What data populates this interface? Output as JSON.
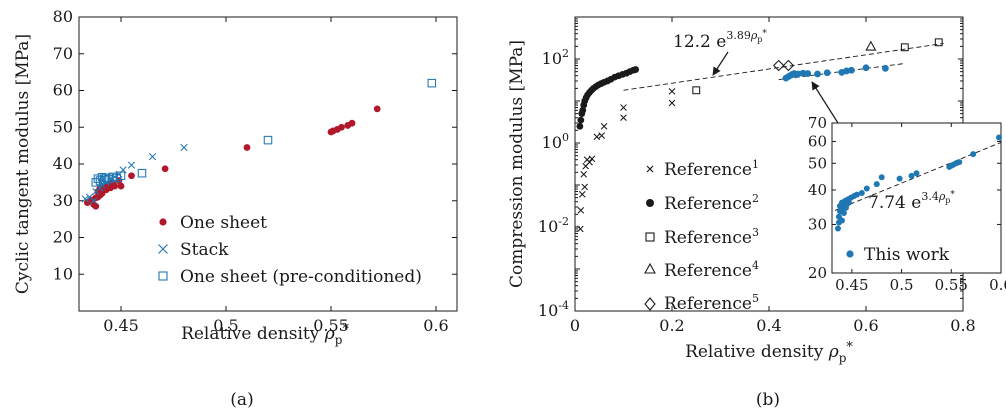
{
  "colors": {
    "red": "#b2182b",
    "blue": "#1f77b4",
    "axis": "#1a1a1a"
  },
  "panel_labels": [
    "(a)",
    "(b)"
  ],
  "chart_data": [
    {
      "type": "scatter",
      "xlabel": "Relative density ρp*",
      "ylabel": "Cyclic tangent modulus [MPa]",
      "xlim": [
        0.43,
        0.61
      ],
      "ylim": [
        0,
        80
      ],
      "xticks": [
        0.45,
        0.5,
        0.55,
        0.6
      ],
      "yticks": [
        10,
        20,
        30,
        40,
        50,
        60,
        70,
        80
      ],
      "legend_position": "bottom-right",
      "series": [
        {
          "name": "One sheet",
          "marker": "dot",
          "color": "#b2182b",
          "points": [
            [
              0.434,
              29.5
            ],
            [
              0.436,
              30.2
            ],
            [
              0.437,
              29
            ],
            [
              0.438,
              28.5
            ],
            [
              0.438,
              30.8
            ],
            [
              0.439,
              31
            ],
            [
              0.439,
              32.5
            ],
            [
              0.44,
              31.5
            ],
            [
              0.44,
              33.4
            ],
            [
              0.441,
              32
            ],
            [
              0.442,
              34
            ],
            [
              0.443,
              33
            ],
            [
              0.444,
              34.5
            ],
            [
              0.445,
              33.5
            ],
            [
              0.446,
              35
            ],
            [
              0.447,
              34
            ],
            [
              0.449,
              35.5
            ],
            [
              0.45,
              34
            ],
            [
              0.455,
              36.8
            ],
            [
              0.471,
              38.7
            ],
            [
              0.51,
              44.5
            ],
            [
              0.55,
              48.7
            ],
            [
              0.551,
              49
            ],
            [
              0.553,
              49.4
            ],
            [
              0.555,
              50
            ],
            [
              0.558,
              50.5
            ],
            [
              0.56,
              51.1
            ],
            [
              0.572,
              55
            ]
          ]
        },
        {
          "name": "Stack",
          "marker": "cross",
          "color": "#1f77b4",
          "points": [
            [
              0.433,
              30.5
            ],
            [
              0.435,
              31
            ],
            [
              0.437,
              30
            ],
            [
              0.438,
              32.5
            ],
            [
              0.44,
              33.5
            ],
            [
              0.441,
              34.2
            ],
            [
              0.443,
              35
            ],
            [
              0.445,
              36
            ],
            [
              0.447,
              36.5
            ],
            [
              0.449,
              37.2
            ],
            [
              0.451,
              38.4
            ],
            [
              0.455,
              39.7
            ],
            [
              0.465,
              42
            ],
            [
              0.48,
              44.5
            ]
          ]
        },
        {
          "name": "One sheet (pre-conditioned)",
          "marker": "square",
          "color": "#1f77b4",
          "points": [
            [
              0.438,
              35
            ],
            [
              0.439,
              36
            ],
            [
              0.44,
              35.5
            ],
            [
              0.441,
              36.4
            ],
            [
              0.442,
              35.7
            ],
            [
              0.443,
              36.2
            ],
            [
              0.444,
              35.9
            ],
            [
              0.446,
              36.5
            ],
            [
              0.448,
              36.2
            ],
            [
              0.45,
              36.8
            ],
            [
              0.46,
              37.5
            ],
            [
              0.52,
              46.5
            ],
            [
              0.598,
              62
            ]
          ]
        }
      ]
    },
    {
      "type": "scatter",
      "y_scale": "log",
      "xlabel": "Relative density ρp*",
      "ylabel": "Compression modulus [MPa]",
      "xlim": [
        0,
        0.8
      ],
      "ylim": [
        0.0001,
        1000
      ],
      "xticks": [
        0,
        0.2,
        0.4,
        0.6,
        0.8
      ],
      "ytick_labels": [
        "10^-4",
        "10^-2",
        "10^0",
        "10^2"
      ],
      "legend_position": "center",
      "annotations": [
        {
          "text": "12.2 e^3.89ρp*",
          "fit": {
            "type": "exponential",
            "a": 12.2,
            "b": 3.89,
            "x_range": [
              0.1,
              0.76
            ]
          }
        }
      ],
      "series": [
        {
          "name": "Reference1",
          "marker": "x",
          "color": "#1a1a1a",
          "points": [
            [
              0.011,
              0.009
            ],
            [
              0.012,
              0.025
            ],
            [
              0.015,
              0.06
            ],
            [
              0.018,
              0.18
            ],
            [
              0.02,
              0.09
            ],
            [
              0.022,
              0.28
            ],
            [
              0.025,
              0.4
            ],
            [
              0.03,
              0.35
            ],
            [
              0.035,
              0.42
            ],
            [
              0.045,
              1.4
            ],
            [
              0.055,
              1.5
            ],
            [
              0.06,
              2.5
            ],
            [
              0.1,
              4
            ],
            [
              0.1,
              7
            ],
            [
              0.2,
              9
            ],
            [
              0.2,
              17
            ]
          ]
        },
        {
          "name": "Reference2",
          "marker": "dot",
          "color": "#1a1a1a",
          "points": [
            [
              0.01,
              2.5
            ],
            [
              0.012,
              3.5
            ],
            [
              0.014,
              5
            ],
            [
              0.016,
              6
            ],
            [
              0.018,
              8
            ],
            [
              0.02,
              10
            ],
            [
              0.023,
              12
            ],
            [
              0.026,
              14
            ],
            [
              0.03,
              16
            ],
            [
              0.034,
              18
            ],
            [
              0.038,
              20
            ],
            [
              0.043,
              22
            ],
            [
              0.048,
              24
            ],
            [
              0.054,
              26
            ],
            [
              0.06,
              28
            ],
            [
              0.067,
              30
            ],
            [
              0.074,
              33
            ],
            [
              0.082,
              37
            ],
            [
              0.09,
              40
            ],
            [
              0.098,
              43
            ],
            [
              0.106,
              46
            ],
            [
              0.113,
              50
            ],
            [
              0.12,
              54
            ],
            [
              0.125,
              56
            ]
          ]
        },
        {
          "name": "Reference3",
          "marker": "square",
          "color": "#1a1a1a",
          "points": [
            [
              0.25,
              18
            ],
            [
              0.68,
              190
            ],
            [
              0.75,
              250
            ]
          ]
        },
        {
          "name": "Reference4",
          "marker": "triangle",
          "color": "#1a1a1a",
          "points": [
            [
              0.61,
              200
            ]
          ]
        },
        {
          "name": "Reference5",
          "marker": "diamond",
          "color": "#1a1a1a",
          "points": [
            [
              0.42,
              70
            ],
            [
              0.44,
              70
            ]
          ]
        },
        {
          "name": "This work",
          "marker": "dot",
          "color": "#1f77b4",
          "points": [
            [
              0.435,
              35
            ],
            [
              0.44,
              38
            ],
            [
              0.445,
              41
            ],
            [
              0.448,
              43
            ],
            [
              0.452,
              45
            ],
            [
              0.455,
              42
            ],
            [
              0.46,
              44
            ],
            [
              0.47,
              46
            ],
            [
              0.48,
              45
            ],
            [
              0.5,
              44
            ],
            [
              0.52,
              47
            ],
            [
              0.55,
              48
            ],
            [
              0.56,
              52
            ],
            [
              0.57,
              54
            ],
            [
              0.6,
              62
            ],
            [
              0.64,
              60
            ]
          ]
        }
      ]
    },
    {
      "type": "scatter",
      "inset": true,
      "y_scale": "log",
      "xlim": [
        0.43,
        0.6
      ],
      "ylim": [
        20,
        70
      ],
      "xticks": [
        0.45,
        0.5,
        0.55,
        0.6
      ],
      "yticks": [
        20,
        30,
        40,
        50,
        60,
        70
      ],
      "legend_position": "bottom-right",
      "annotations": [
        {
          "text": "7.74 e^3.4ρp*",
          "fit": {
            "type": "exponential",
            "a": 7.74,
            "b": 3.4,
            "x_range": [
              0.433,
              0.6
            ]
          }
        }
      ],
      "series": [
        {
          "name": "This work",
          "marker": "dot",
          "color": "#1f77b4",
          "points": [
            [
              0.436,
              29
            ],
            [
              0.437,
              30.5
            ],
            [
              0.437,
              32
            ],
            [
              0.438,
              33.5
            ],
            [
              0.438,
              35
            ],
            [
              0.439,
              34
            ],
            [
              0.44,
              36
            ],
            [
              0.44,
              31
            ],
            [
              0.441,
              35.5
            ],
            [
              0.442,
              33
            ],
            [
              0.443,
              36.5
            ],
            [
              0.444,
              34.5
            ],
            [
              0.445,
              35.5
            ],
            [
              0.446,
              37
            ],
            [
              0.447,
              36
            ],
            [
              0.449,
              37.5
            ],
            [
              0.452,
              38
            ],
            [
              0.455,
              38.5
            ],
            [
              0.46,
              39
            ],
            [
              0.465,
              40.5
            ],
            [
              0.475,
              42
            ],
            [
              0.48,
              44.5
            ],
            [
              0.498,
              44
            ],
            [
              0.51,
              45
            ],
            [
              0.515,
              46
            ],
            [
              0.548,
              48.5
            ],
            [
              0.55,
              49
            ],
            [
              0.552,
              49.4
            ],
            [
              0.555,
              50
            ],
            [
              0.558,
              50.5
            ],
            [
              0.572,
              54
            ],
            [
              0.598,
              62
            ]
          ]
        }
      ]
    }
  ]
}
